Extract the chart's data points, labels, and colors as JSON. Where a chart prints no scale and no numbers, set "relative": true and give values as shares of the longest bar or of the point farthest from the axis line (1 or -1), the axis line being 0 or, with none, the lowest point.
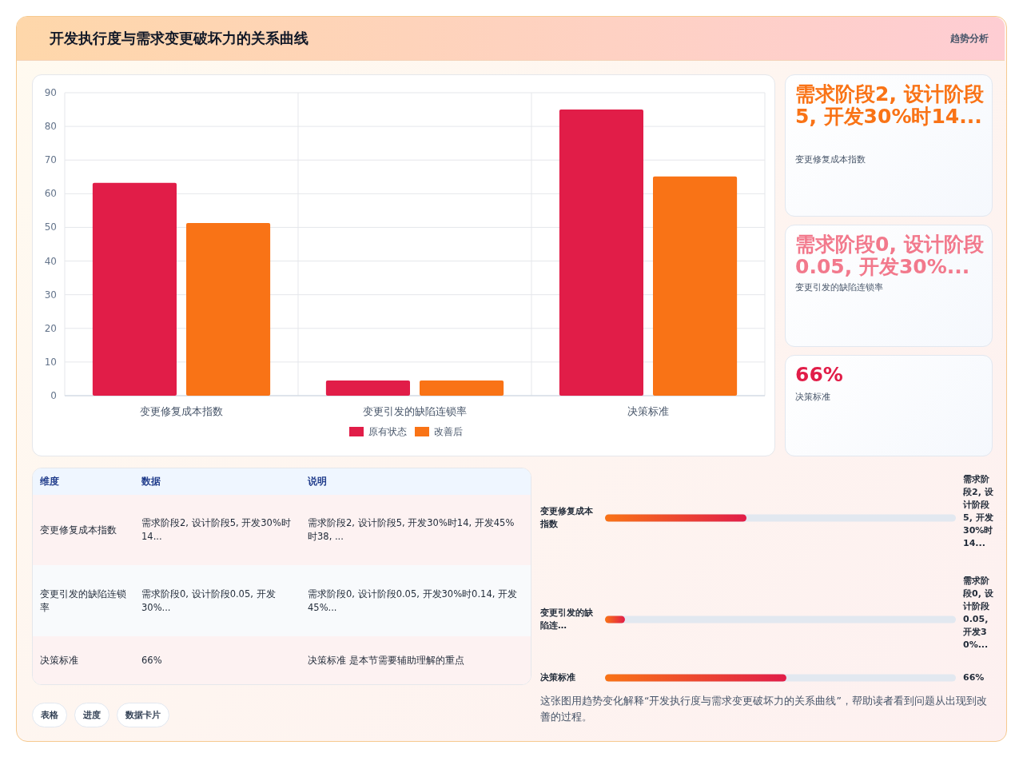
{
  "chart_data": [
    {
      "type": "other",
      "title": "开发执行度与需求变更破坏力的关系曲线",
      "subtitle": "趋势分析"
    },
    {
      "type": "bar",
      "categories": [
        "变更修复成本指数",
        "变更引发的缺陷连锁率",
        "决策标准"
      ],
      "series": [
        {
          "name": "原有状态",
          "color": "#e11d48",
          "values": [
            63.2,
            4.5,
            85.0
          ]
        },
        {
          "name": "改善后",
          "color": "#f97316",
          "values": [
            51.3,
            4.5,
            65.1
          ]
        }
      ],
      "ylim": [
        0,
        90
      ],
      "yticks": [
        0,
        10,
        20,
        30,
        40,
        50,
        60,
        70,
        80,
        90
      ],
      "grid": true,
      "legend": "bottom"
    },
    {
      "type": "other",
      "annotations": [
        "需求阶段2, 设计阶段5, 开发30%时14...",
        "变更修复成本指数",
        "需求阶段0, 设计阶段0.05, 开发30%...",
        "变更引发的缺陷连锁率",
        "66%",
        "决策标准"
      ]
    },
    {
      "type": "other",
      "annotations": [
        "维度",
        "数据",
        "说明",
        "变更修复成本指数",
        "需求阶段2, 设计阶段5, 开发30%时14...",
        "需求阶段2, 设计阶段5, 开发30%时14, 开发45%时38, ...",
        "变更引发的缺陷连锁率",
        "需求阶段0, 设计阶段0.05, 开发30%...",
        "需求阶段0, 设计阶段0.05, 开发30%时0.14, 开发45%...",
        "决策标准",
        "66%",
        "决策标准 是本节需要辅助理解的重点"
      ]
    },
    {
      "type": "bar",
      "orientation": "horizontal",
      "relative": true,
      "categories": [
        "变更修复成本指数",
        "变更引发的缺陷连…",
        "决策标准"
      ],
      "values": [
        0.78,
        0.11,
        1
      ],
      "annotations": [
        "需求阶段2, 设计阶段5, 开发30%时14...",
        "需求阶段0, 设计阶段0.05, 开发30%...",
        "66%",
        "这张图用趋势变化解释“开发执行度与需求变更破坏力的关系曲线”，帮助读者看到问题从出现到改善的过程。"
      ]
    },
    {
      "type": "other",
      "annotations": [
        "表格",
        "进度",
        "数据卡片"
      ]
    }
  ]
}
